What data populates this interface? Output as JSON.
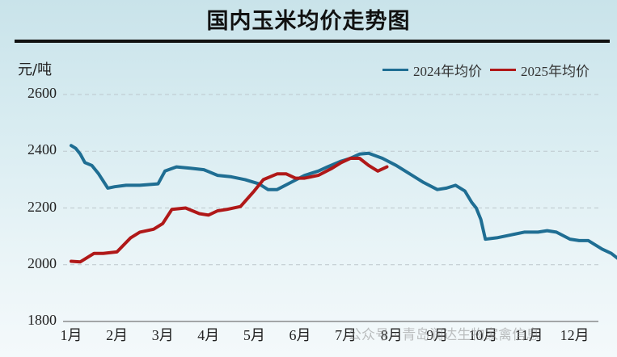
{
  "header": {
    "title": "国内玉米均价走势图",
    "unit": "元/吨"
  },
  "legend": [
    {
      "label": "2024年均价",
      "color": "#1f6e93"
    },
    {
      "label": "2025年均价",
      "color": "#b01818"
    }
  ],
  "watermark": "公众号 · 青岛润达生物家禽信息",
  "chart_data": {
    "type": "line",
    "title": "国内玉米均价走势图",
    "ylabel": "元/吨",
    "xlabel": "",
    "ylim": [
      1800,
      2600
    ],
    "yticks": [
      1800,
      2000,
      2200,
      2400,
      2600
    ],
    "categories": [
      "1月",
      "2月",
      "3月",
      "4月",
      "5月",
      "6月",
      "7月",
      "8月",
      "9月",
      "10月",
      "11月",
      "12月"
    ],
    "grid": "horizontal dashed",
    "legend_position": "top-right",
    "series": [
      {
        "name": "2024年均价",
        "color": "#1f6e93",
        "x": [
          1.0,
          1.1,
          1.2,
          1.3,
          1.45,
          1.6,
          1.8,
          1.95,
          2.2,
          2.5,
          2.9,
          3.05,
          3.3,
          3.6,
          3.9,
          4.2,
          4.5,
          4.8,
          5.1,
          5.3,
          5.5,
          5.8,
          6.1,
          6.4,
          6.6,
          6.9,
          7.1,
          7.3,
          7.5,
          7.8,
          8.1,
          8.4,
          8.7,
          9.0,
          9.2,
          9.4,
          9.6,
          9.75,
          9.85,
          9.95,
          10.05,
          10.3,
          10.6,
          10.9,
          11.2,
          11.4,
          11.6,
          11.9,
          12.1,
          12.3,
          12.6,
          12.8,
          13.0
        ],
        "values": [
          2420,
          2410,
          2390,
          2360,
          2350,
          2320,
          2270,
          2275,
          2280,
          2280,
          2285,
          2330,
          2345,
          2340,
          2335,
          2315,
          2310,
          2300,
          2285,
          2265,
          2265,
          2290,
          2315,
          2330,
          2345,
          2365,
          2375,
          2390,
          2393,
          2375,
          2350,
          2320,
          2290,
          2265,
          2270,
          2280,
          2260,
          2220,
          2200,
          2160,
          2090,
          2095,
          2105,
          2115,
          2115,
          2120,
          2115,
          2090,
          2085,
          2085,
          2055,
          2040,
          2015
        ]
      },
      {
        "name": "2025年均价",
        "color": "#b01818",
        "x": [
          1.0,
          1.2,
          1.3,
          1.5,
          1.7,
          2.0,
          2.3,
          2.5,
          2.8,
          3.0,
          3.2,
          3.5,
          3.8,
          4.0,
          4.2,
          4.4,
          4.7,
          5.0,
          5.2,
          5.5,
          5.7,
          5.9,
          6.1,
          6.4,
          6.7,
          6.9,
          7.1,
          7.3,
          7.5,
          7.7,
          7.9
        ],
        "values": [
          2012,
          2010,
          2020,
          2040,
          2040,
          2045,
          2095,
          2115,
          2125,
          2145,
          2195,
          2200,
          2180,
          2175,
          2190,
          2195,
          2205,
          2260,
          2300,
          2320,
          2320,
          2305,
          2305,
          2315,
          2340,
          2360,
          2375,
          2375,
          2350,
          2330,
          2345
        ]
      }
    ]
  }
}
